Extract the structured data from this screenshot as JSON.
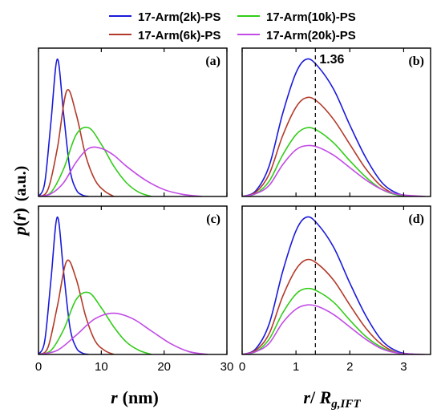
{
  "legend": {
    "entries": [
      {
        "label": "17-Arm(2k)-PS",
        "color": "#1a1adb"
      },
      {
        "label": "17-Arm(6k)-PS",
        "color": "#b33a2a"
      },
      {
        "label": "17-Arm(10k)-PS",
        "color": "#33cc1a"
      },
      {
        "label": "17-Arm(20k)-PS",
        "color": "#c24ae6"
      }
    ]
  },
  "axes": {
    "ylabel_main": "p",
    "ylabel_paren_open": "(",
    "ylabel_var": "r",
    "ylabel_paren_close": ")",
    "ylabel_units": "(a.u.)",
    "xlabel_left_var": "r",
    "xlabel_left_units": "(nm)",
    "xlabel_right_r": "r",
    "xlabel_right_slash": "/ ",
    "xlabel_right_R": "R",
    "xlabel_right_sub": "g,IFT"
  },
  "annotation": {
    "text": "1.36",
    "x": 1.36
  },
  "chart_data": [
    {
      "type": "line",
      "panel": "(a)",
      "xlim": [
        0,
        30
      ],
      "xticks": [
        0,
        10,
        20,
        30
      ],
      "ylim": [
        0,
        1.08
      ],
      "series": [
        {
          "color": "#1a1adb",
          "x": [
            0,
            1,
            2,
            3,
            4,
            5,
            6,
            7,
            8
          ],
          "y": [
            0,
            0.1,
            0.55,
            1.0,
            0.6,
            0.2,
            0.05,
            0.01,
            0
          ]
        },
        {
          "color": "#b33a2a",
          "x": [
            0,
            1.5,
            3,
            4.5,
            6,
            7.5,
            9,
            10.5,
            12
          ],
          "y": [
            0,
            0.05,
            0.35,
            0.77,
            0.6,
            0.3,
            0.12,
            0.04,
            0
          ]
        },
        {
          "color": "#33cc1a",
          "x": [
            0,
            2,
            4,
            6,
            8,
            10,
            12,
            14,
            16,
            18
          ],
          "y": [
            0,
            0.03,
            0.2,
            0.45,
            0.5,
            0.38,
            0.22,
            0.1,
            0.03,
            0
          ]
        },
        {
          "color": "#c24ae6",
          "x": [
            0,
            2,
            4,
            6,
            8,
            10,
            12,
            14,
            17,
            20,
            23,
            26
          ],
          "y": [
            0,
            0.02,
            0.1,
            0.25,
            0.35,
            0.35,
            0.3,
            0.22,
            0.12,
            0.05,
            0.015,
            0
          ]
        }
      ]
    },
    {
      "type": "line",
      "panel": "(b)",
      "xlim": [
        0,
        3.5
      ],
      "xticks": [
        0,
        1,
        2,
        3
      ],
      "ylim": [
        0,
        1.08
      ],
      "series": [
        {
          "color": "#1a1adb",
          "x": [
            0,
            0.25,
            0.5,
            0.75,
            1.0,
            1.2,
            1.4,
            1.7,
            2.0,
            2.3,
            2.6,
            2.9,
            3.2
          ],
          "y": [
            0,
            0.04,
            0.22,
            0.6,
            0.9,
            1.0,
            0.95,
            0.78,
            0.52,
            0.28,
            0.1,
            0.02,
            0
          ]
        },
        {
          "color": "#b33a2a",
          "x": [
            0,
            0.25,
            0.5,
            0.75,
            1.0,
            1.2,
            1.4,
            1.7,
            2.0,
            2.3,
            2.6,
            2.9,
            3.2
          ],
          "y": [
            0,
            0.03,
            0.16,
            0.44,
            0.65,
            0.72,
            0.69,
            0.56,
            0.38,
            0.2,
            0.07,
            0.01,
            0
          ]
        },
        {
          "color": "#33cc1a",
          "x": [
            0,
            0.25,
            0.5,
            0.75,
            1.0,
            1.2,
            1.4,
            1.7,
            2.0,
            2.3,
            2.6,
            2.9,
            3.3
          ],
          "y": [
            0,
            0.02,
            0.11,
            0.3,
            0.45,
            0.5,
            0.48,
            0.39,
            0.26,
            0.14,
            0.05,
            0.01,
            0
          ]
        },
        {
          "color": "#c24ae6",
          "x": [
            0,
            0.25,
            0.5,
            0.75,
            1.0,
            1.2,
            1.4,
            1.7,
            2.0,
            2.3,
            2.6,
            2.9,
            3.4
          ],
          "y": [
            0,
            0.02,
            0.08,
            0.23,
            0.34,
            0.37,
            0.36,
            0.3,
            0.21,
            0.12,
            0.05,
            0.015,
            0
          ]
        }
      ]
    },
    {
      "type": "line",
      "panel": "(c)",
      "xlim": [
        0,
        30
      ],
      "xticks": [
        0,
        10,
        20,
        30
      ],
      "ylim": [
        0,
        1.08
      ],
      "series": [
        {
          "color": "#1a1adb",
          "x": [
            0,
            1,
            2,
            3,
            4,
            5,
            6,
            7,
            8
          ],
          "y": [
            0,
            0.1,
            0.55,
            1.0,
            0.6,
            0.2,
            0.05,
            0.01,
            0
          ]
        },
        {
          "color": "#b33a2a",
          "x": [
            0,
            1.5,
            3,
            4.5,
            6,
            7.5,
            9,
            10.5,
            12
          ],
          "y": [
            0,
            0.05,
            0.35,
            0.68,
            0.55,
            0.28,
            0.1,
            0.03,
            0
          ]
        },
        {
          "color": "#33cc1a",
          "x": [
            0,
            2,
            4,
            6,
            8,
            10,
            12,
            14,
            16,
            18
          ],
          "y": [
            0,
            0.03,
            0.18,
            0.4,
            0.45,
            0.34,
            0.2,
            0.09,
            0.03,
            0
          ]
        },
        {
          "color": "#c24ae6",
          "x": [
            0,
            3,
            6,
            9,
            12,
            15,
            18,
            21,
            24,
            27
          ],
          "y": [
            0,
            0.03,
            0.14,
            0.26,
            0.3,
            0.26,
            0.17,
            0.08,
            0.02,
            0
          ]
        }
      ]
    },
    {
      "type": "line",
      "panel": "(d)",
      "xlim": [
        0,
        3.5
      ],
      "xticks": [
        0,
        1,
        2,
        3
      ],
      "ylim": [
        0,
        1.08
      ],
      "series": [
        {
          "color": "#1a1adb",
          "x": [
            0,
            0.25,
            0.5,
            0.75,
            1.0,
            1.2,
            1.4,
            1.7,
            2.0,
            2.3,
            2.6,
            2.9,
            3.2
          ],
          "y": [
            0,
            0.04,
            0.22,
            0.6,
            0.9,
            1.0,
            0.95,
            0.78,
            0.52,
            0.28,
            0.1,
            0.02,
            0
          ]
        },
        {
          "color": "#b33a2a",
          "x": [
            0,
            0.25,
            0.5,
            0.75,
            1.0,
            1.2,
            1.4,
            1.7,
            2.0,
            2.3,
            2.6,
            2.9,
            3.2
          ],
          "y": [
            0,
            0.03,
            0.15,
            0.42,
            0.62,
            0.69,
            0.66,
            0.54,
            0.36,
            0.19,
            0.07,
            0.01,
            0
          ]
        },
        {
          "color": "#33cc1a",
          "x": [
            0,
            0.25,
            0.5,
            0.75,
            1.0,
            1.2,
            1.4,
            1.7,
            2.0,
            2.3,
            2.6,
            2.9,
            3.3
          ],
          "y": [
            0,
            0.02,
            0.11,
            0.3,
            0.44,
            0.48,
            0.46,
            0.38,
            0.25,
            0.13,
            0.05,
            0.01,
            0
          ]
        },
        {
          "color": "#c24ae6",
          "x": [
            0,
            0.25,
            0.5,
            0.75,
            1.0,
            1.2,
            1.4,
            1.7,
            2.0,
            2.3,
            2.6,
            2.9,
            3.4
          ],
          "y": [
            0,
            0.02,
            0.08,
            0.23,
            0.33,
            0.36,
            0.35,
            0.29,
            0.2,
            0.11,
            0.04,
            0.01,
            0
          ]
        }
      ]
    }
  ]
}
